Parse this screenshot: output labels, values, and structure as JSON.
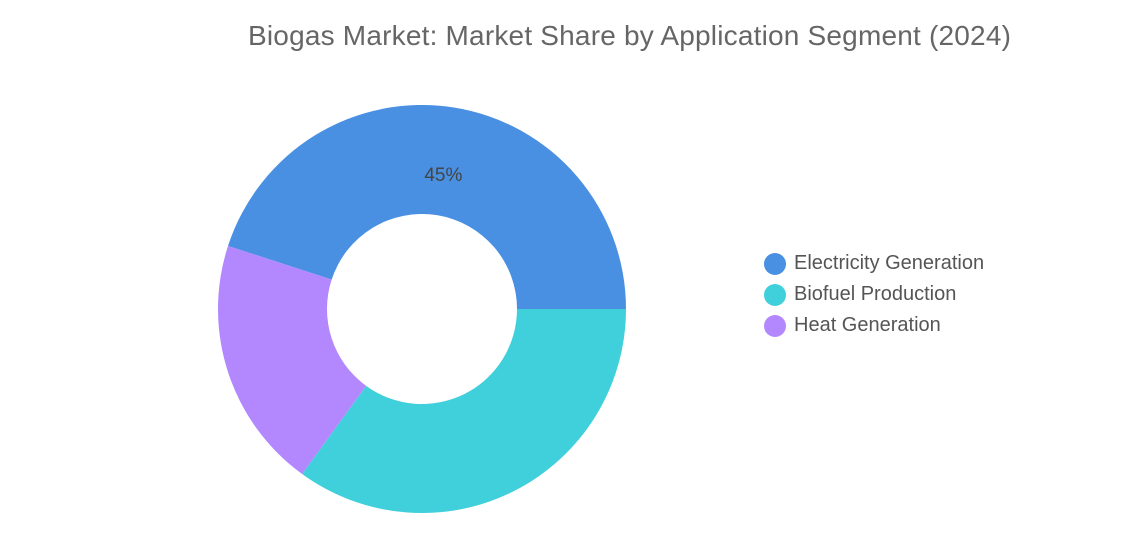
{
  "chart_data": {
    "type": "pie",
    "title": "Biogas Market: Market Share by Application Segment (2024)",
    "series": [
      {
        "name": "Electricity Generation",
        "value": 45,
        "label": "45%",
        "color": "#4A90E2"
      },
      {
        "name": "Biofuel Production",
        "value": 35,
        "label": "",
        "color": "#40D0DB"
      },
      {
        "name": "Heat Generation",
        "value": 20,
        "label": "",
        "color": "#B388FF"
      }
    ],
    "donut": true,
    "legend_position": "right"
  }
}
